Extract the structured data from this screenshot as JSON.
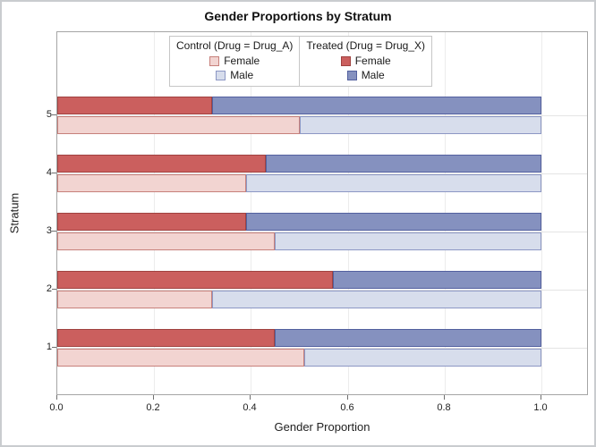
{
  "figure": {
    "title": "Gender Proportions by Stratum"
  },
  "axes": {
    "x_label": "Gender Proportion",
    "y_label": "Stratum",
    "x_ticks": [
      {
        "label": "0.0",
        "value": 0.0
      },
      {
        "label": "0.2",
        "value": 0.2
      },
      {
        "label": "0.4",
        "value": 0.4
      },
      {
        "label": "0.6",
        "value": 0.6
      },
      {
        "label": "0.8",
        "value": 0.8
      },
      {
        "label": "1.0",
        "value": 1.0
      }
    ],
    "y_ticks": [
      "1",
      "2",
      "3",
      "4",
      "5"
    ]
  },
  "legend": {
    "groups": [
      {
        "title": "Control (Drug = Drug_A)",
        "entries": [
          {
            "label": "Female",
            "color_key": "control_female"
          },
          {
            "label": "Male",
            "color_key": "control_male"
          }
        ]
      },
      {
        "title": "Treated (Drug = Drug_X)",
        "entries": [
          {
            "label": "Female",
            "color_key": "treated_female"
          },
          {
            "label": "Male",
            "color_key": "treated_male"
          }
        ]
      }
    ]
  },
  "colors": {
    "treated_female": {
      "fill": "#CB5F5E",
      "border": "#A04240"
    },
    "treated_male": {
      "fill": "#8591BF",
      "border": "#53609F"
    },
    "control_female": {
      "fill": "#F2D4D1",
      "border": "#C7807B"
    },
    "control_male": {
      "fill": "#D7DDEC",
      "border": "#8C97C4"
    }
  },
  "chart_data": {
    "type": "bar",
    "orientation": "horizontal",
    "stacked": true,
    "grouped": true,
    "title": "Gender Proportions by Stratum",
    "xlabel": "Gender Proportion",
    "ylabel": "Stratum",
    "xlim": [
      0.0,
      1.1
    ],
    "x_tick_values": [
      0.0,
      0.2,
      0.4,
      0.6,
      0.8,
      1.0
    ],
    "grid": true,
    "legend_position": "inside-top-center",
    "categories": [
      "1",
      "2",
      "3",
      "4",
      "5"
    ],
    "series": [
      {
        "name": "Treated Female",
        "group": "Treated (Drug = Drug_X)",
        "values": [
          0.45,
          0.57,
          0.39,
          0.43,
          0.32
        ]
      },
      {
        "name": "Treated Male",
        "group": "Treated (Drug = Drug_X)",
        "values": [
          0.55,
          0.43,
          0.61,
          0.57,
          0.68
        ]
      },
      {
        "name": "Control Female",
        "group": "Control (Drug = Drug_A)",
        "values": [
          0.51,
          0.32,
          0.45,
          0.39,
          0.5
        ]
      },
      {
        "name": "Control Male",
        "group": "Control (Drug = Drug_A)",
        "values": [
          0.49,
          0.68,
          0.55,
          0.61,
          0.5
        ]
      }
    ]
  }
}
